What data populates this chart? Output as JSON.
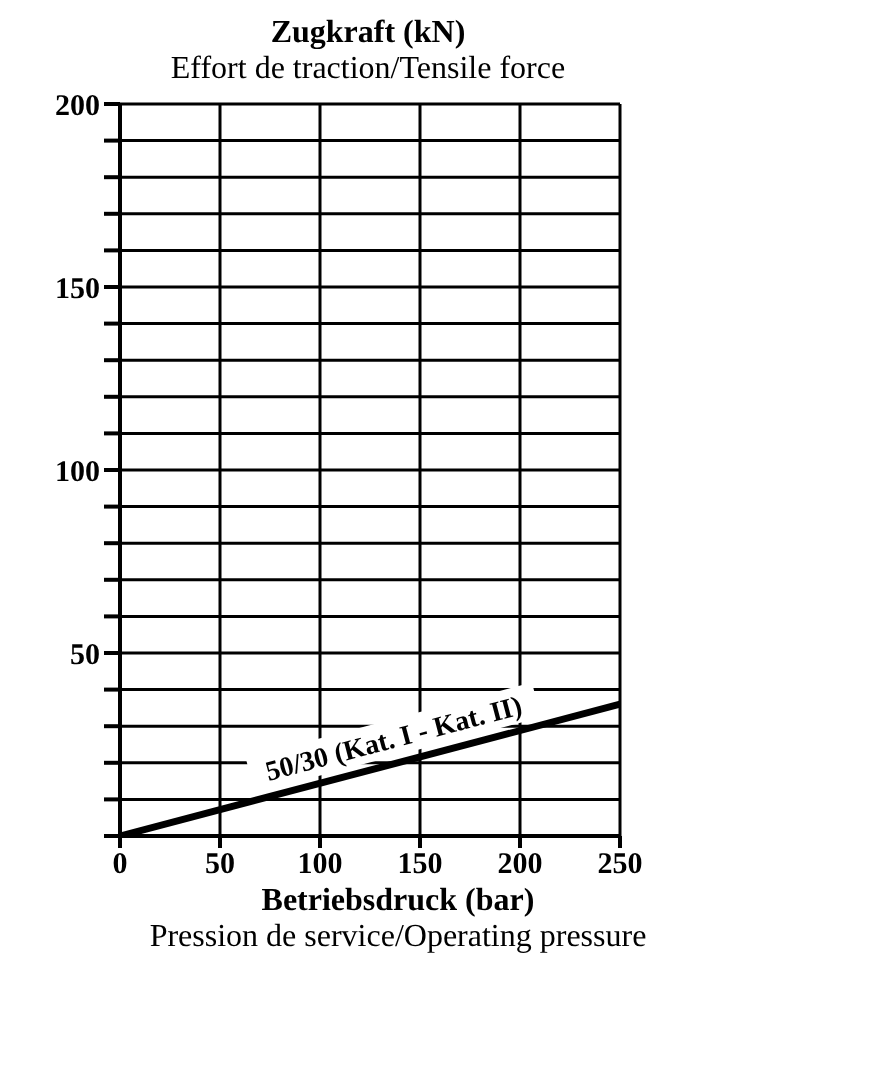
{
  "chart_data": {
    "type": "line",
    "title": "Zugkraft (kN)",
    "subtitle": "Effort de traction/Tensile force",
    "xlabel": "Betriebsdruck (bar)",
    "annotations": [
      {
        "text": "50/30 (Kat. I - Kat. II)",
        "x": 140,
        "y": 20
      },
      "Pression de service/Operating pressure"
    ],
    "x": [
      0,
      250
    ],
    "series": [
      {
        "color": "#000000",
        "values": [
          0,
          36
        ]
      }
    ],
    "xlim": [
      0,
      250
    ],
    "xticks": [
      0,
      50,
      100,
      150,
      200,
      250
    ],
    "ylim": [
      0,
      200
    ],
    "yticks": [
      {
        "value": 0,
        "label": null
      },
      {
        "value": 10,
        "label": null
      },
      {
        "value": 20,
        "label": null
      },
      {
        "value": 30,
        "label": null
      },
      {
        "value": 40,
        "label": null
      },
      50,
      {
        "value": 60,
        "label": null
      },
      {
        "value": 70,
        "label": null
      },
      {
        "value": 80,
        "label": null
      },
      {
        "value": 90,
        "label": null
      },
      100,
      {
        "value": 110,
        "label": null
      },
      {
        "value": 120,
        "label": null
      },
      {
        "value": 130,
        "label": null
      },
      {
        "value": 140,
        "label": null
      },
      150,
      {
        "value": 160,
        "label": null
      },
      {
        "value": 170,
        "label": null
      },
      {
        "value": 180,
        "label": null
      },
      {
        "value": 190,
        "label": null
      },
      200
    ],
    "grid": true
  }
}
